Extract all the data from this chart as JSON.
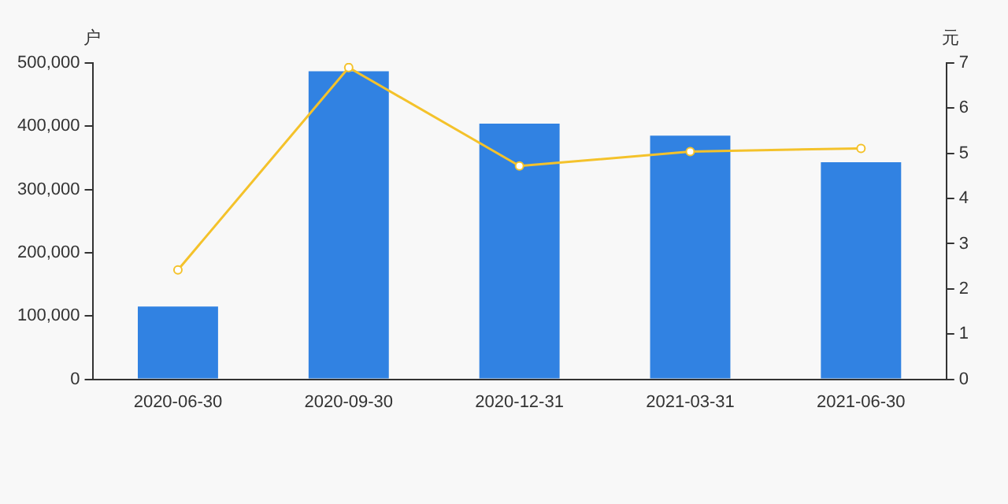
{
  "chart_data": {
    "type": "bar",
    "ylabel": "户",
    "y2label": "元",
    "categories": [
      "2020-06-30",
      "2020-09-30",
      "2020-12-31",
      "2021-03-31",
      "2021-06-30"
    ],
    "series": [
      {
        "color": "#3182e2",
        "values": [
          115000,
          487000,
          404000,
          385000,
          343000
        ]
      },
      {
        "type": "line",
        "axis": "y2",
        "color": "#f4c22b",
        "marker": "circle",
        "values": [
          2.42,
          6.9,
          4.72,
          5.04,
          5.11
        ]
      }
    ],
    "ylim": [
      0,
      500000
    ],
    "yticks": [
      0,
      {
        "value": 100000,
        "label": "100,000"
      },
      {
        "value": 200000,
        "label": "200,000"
      },
      {
        "value": 300000,
        "label": "300,000"
      },
      {
        "value": 400000,
        "label": "400,000"
      },
      {
        "value": 500000,
        "label": "500,000"
      }
    ],
    "y2lim": [
      0,
      7
    ],
    "y2ticks": [
      0,
      1,
      2,
      3,
      4,
      5,
      6,
      7
    ],
    "grid": false,
    "legend": false
  }
}
